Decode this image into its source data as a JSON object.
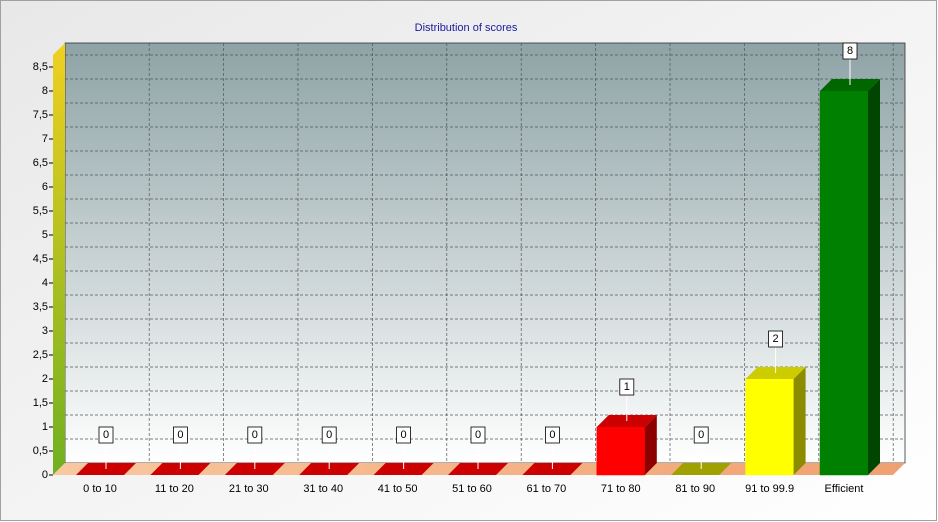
{
  "chart_data": {
    "type": "bar3d",
    "title": "Distribution of scores",
    "categories": [
      "0 to 10",
      "11 to 20",
      "21 to 30",
      "31 to 40",
      "41 to 50",
      "51 to 60",
      "61 to 70",
      "71 to 80",
      "81 to 90",
      "91 to 99.9",
      "Efficient"
    ],
    "values": [
      0,
      0,
      0,
      0,
      0,
      0,
      0,
      1,
      0,
      2,
      8
    ],
    "colors": [
      "#ff0000",
      "#ff0000",
      "#ff0000",
      "#ff0000",
      "#ff0000",
      "#ff0000",
      "#ff0000",
      "#ff0000",
      "#c8c800",
      "#ffff00",
      "#008000"
    ],
    "ylim": [
      0,
      9
    ],
    "yticks": [
      0,
      {
        "value": 0.5,
        "label": "0,5"
      },
      1,
      {
        "value": 1.5,
        "label": "1,5"
      },
      2,
      {
        "value": 2.5,
        "label": "2,5"
      },
      3,
      {
        "value": 3.5,
        "label": "3,5"
      },
      4,
      {
        "value": 4.5,
        "label": "4,5"
      },
      5,
      {
        "value": 5.5,
        "label": "5,5"
      },
      6,
      {
        "value": 6.5,
        "label": "6,5"
      },
      7,
      {
        "value": 7.5,
        "label": "7,5"
      },
      8,
      {
        "value": 8.5,
        "label": "8,5"
      }
    ],
    "grid": true
  }
}
